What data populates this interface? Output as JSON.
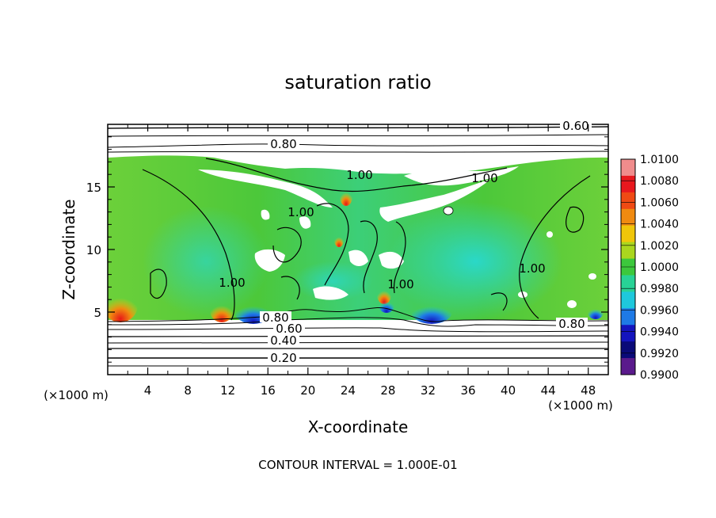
{
  "chart_data": {
    "type": "heatmap",
    "title": "saturation ratio",
    "xlabel": "X-coordinate",
    "ylabel": "Z-coordinate",
    "x_unit": "(×1000 m)",
    "z_unit": "(×1000 m)",
    "xlim": [
      0,
      50
    ],
    "ylim": [
      0,
      20
    ],
    "x_ticks": [
      "4",
      "8",
      "12",
      "16",
      "20",
      "24",
      "28",
      "32",
      "36",
      "40",
      "44",
      "48"
    ],
    "y_ticks": [
      "5",
      "10",
      "15"
    ],
    "colorbar": {
      "labels": [
        "1.0100",
        "1.0080",
        "1.0060",
        "1.0040",
        "1.0020",
        "1.0000",
        "0.9980",
        "0.9960",
        "0.9940",
        "0.9920",
        "0.9900"
      ],
      "colors": [
        "#f08c8c",
        "#e8181e",
        "#f04a14",
        "#f08a10",
        "#f0c60a",
        "#aad61e",
        "#3cc83c",
        "#28d296",
        "#1ec8dc",
        "#1e7ae6",
        "#1414be",
        "#0a0a78",
        "#5a1a8c"
      ]
    },
    "contour_labels": [
      {
        "text": "0.20"
      },
      {
        "text": "0.40"
      },
      {
        "text": "0.60"
      },
      {
        "text": "0.80"
      },
      {
        "text": "0.80"
      },
      {
        "text": "0.80"
      },
      {
        "text": "0.60"
      },
      {
        "text": "1.00"
      },
      {
        "text": "1.00"
      },
      {
        "text": "1.00"
      },
      {
        "text": "1.00"
      },
      {
        "text": "1.00"
      },
      {
        "text": "1.00"
      }
    ],
    "footer": "CONTOUR INTERVAL = 1.000E-01"
  }
}
